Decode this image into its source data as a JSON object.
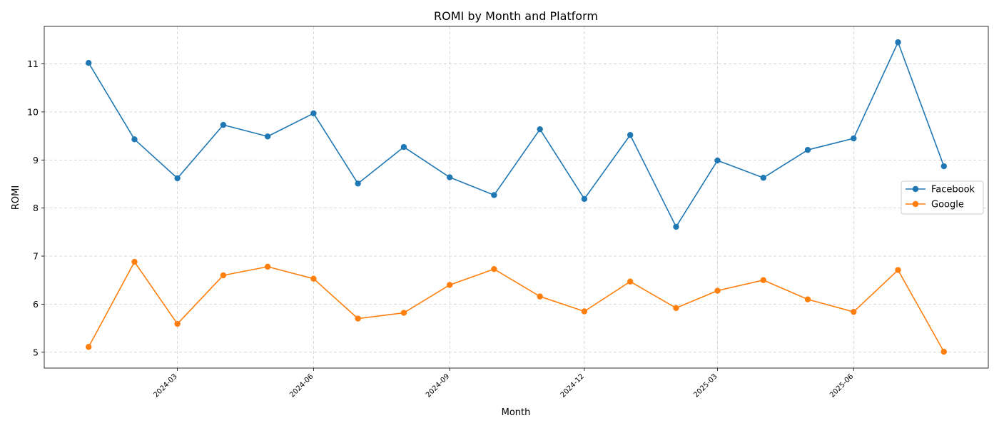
{
  "chart_data": {
    "type": "line",
    "title": "ROMI by Month and Platform",
    "xlabel": "Month",
    "ylabel": "ROMI",
    "x": [
      "2024-01",
      "2024-02",
      "2024-03",
      "2024-04",
      "2024-05",
      "2024-06",
      "2024-07",
      "2024-08",
      "2024-09",
      "2024-10",
      "2024-11",
      "2024-12",
      "2025-01",
      "2025-02",
      "2025-03",
      "2025-04",
      "2025-05",
      "2025-06",
      "2025-07",
      "2025-08"
    ],
    "x_ticks": [
      "2024-03",
      "2024-06",
      "2024-09",
      "2024-12",
      "2025-03",
      "2025-06"
    ],
    "y_ticks": [
      5,
      6,
      7,
      8,
      9,
      10,
      11
    ],
    "ylim": [
      4.67,
      11.78
    ],
    "xlim": [
      "2023-12-02",
      "2025-08-31"
    ],
    "grid": true,
    "legend_position": "center-right",
    "series": [
      {
        "name": "Facebook",
        "color": "#1f77b4",
        "values": [
          11.02,
          9.43,
          8.62,
          9.73,
          9.49,
          9.97,
          8.51,
          9.27,
          8.64,
          8.27,
          9.64,
          8.19,
          9.52,
          7.61,
          8.99,
          8.63,
          9.21,
          9.45,
          11.45,
          8.87
        ]
      },
      {
        "name": "Google",
        "color": "#ff7f0e",
        "values": [
          5.11,
          6.88,
          5.59,
          6.6,
          6.78,
          6.53,
          5.7,
          5.82,
          6.4,
          6.73,
          6.16,
          5.85,
          6.47,
          5.92,
          6.28,
          6.5,
          6.1,
          5.84,
          6.71,
          5.01
        ]
      }
    ]
  }
}
